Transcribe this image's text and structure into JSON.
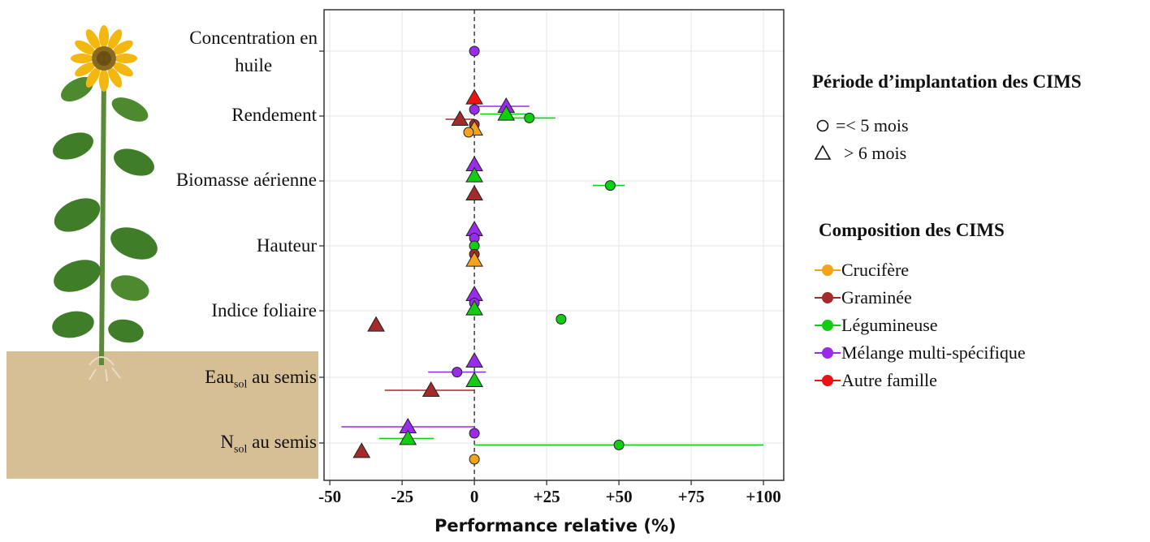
{
  "chart_data": {
    "type": "scatter",
    "xlabel": "Performance relative (%)",
    "xlim": [
      -52,
      107
    ],
    "xticks": [
      -50,
      -25,
      0,
      25,
      50,
      75,
      100
    ],
    "xtick_labels": [
      "-50",
      "-25",
      "0",
      "+25",
      "+50",
      "+75",
      "+100"
    ],
    "categories": [
      "Concentration en huile",
      "Rendement",
      "Biomasse aérienne",
      "Hauteur",
      "Indice foliaire",
      "Eau sol au semis",
      "N sol au semis"
    ],
    "grid": true,
    "legend_shape": {
      "title": "Période d’implantation des CIMS",
      "items": [
        {
          "shape": "circle",
          "label": "=< 5 mois"
        },
        {
          "shape": "triangle",
          "label": "> 6 mois"
        }
      ]
    },
    "legend_color": {
      "title": "Composition des CIMS",
      "items": [
        {
          "label": "Crucifère",
          "color": "#f5a31a"
        },
        {
          "label": "Graminée",
          "color": "#a52a2a"
        },
        {
          "label": "Légumineuse",
          "color": "#11cc11"
        },
        {
          "label": "Mélange multi-spécifique",
          "color": "#9b2bea"
        },
        {
          "label": "Autre famille",
          "color": "#ee1111"
        }
      ]
    },
    "points": [
      {
        "category": "Concentration en huile",
        "group": "Mélange multi-spécifique",
        "shape": "circle",
        "x": 0,
        "offset": 0
      },
      {
        "category": "Rendement",
        "group": "Autre famille",
        "shape": "triangle",
        "x": 0,
        "offset": -0.28
      },
      {
        "category": "Rendement",
        "group": "Mélange multi-spécifique",
        "shape": "triangle",
        "x": 11,
        "lo": 0,
        "hi": 19,
        "offset": -0.15
      },
      {
        "category": "Rendement",
        "group": "Mélange multi-spécifique",
        "shape": "circle",
        "x": 0,
        "offset": -0.1
      },
      {
        "category": "Rendement",
        "group": "Légumineuse",
        "shape": "triangle",
        "x": 11,
        "lo": 2,
        "hi": 19,
        "offset": -0.03
      },
      {
        "category": "Rendement",
        "group": "Légumineuse",
        "shape": "circle",
        "x": 19,
        "lo": 12,
        "hi": 28,
        "offset": 0.03
      },
      {
        "category": "Rendement",
        "group": "Graminée",
        "shape": "triangle",
        "x": -5,
        "lo": -10,
        "hi": 0,
        "offset": 0.05
      },
      {
        "category": "Rendement",
        "group": "Graminée",
        "shape": "circle",
        "x": 0,
        "offset": 0.13
      },
      {
        "category": "Rendement",
        "group": "Crucifère",
        "shape": "triangle",
        "x": 0,
        "offset": 0.2
      },
      {
        "category": "Rendement",
        "group": "Crucifère",
        "shape": "circle",
        "x": -2,
        "offset": 0.25
      },
      {
        "category": "Biomasse aérienne",
        "group": "Mélange multi-spécifique",
        "shape": "triangle",
        "x": 0,
        "offset": -0.25
      },
      {
        "category": "Biomasse aérienne",
        "group": "Légumineuse",
        "shape": "triangle",
        "x": 0,
        "offset": -0.08
      },
      {
        "category": "Biomasse aérienne",
        "group": "Légumineuse",
        "shape": "circle",
        "x": 47,
        "lo": 41,
        "hi": 52,
        "offset": 0.07
      },
      {
        "category": "Biomasse aérienne",
        "group": "Graminée",
        "shape": "triangle",
        "x": 0,
        "offset": 0.2
      },
      {
        "category": "Hauteur",
        "group": "Mélange multi-spécifique",
        "shape": "triangle",
        "x": 0,
        "offset": -0.25
      },
      {
        "category": "Hauteur",
        "group": "Mélange multi-spécifique",
        "shape": "circle",
        "x": 0,
        "offset": -0.12
      },
      {
        "category": "Hauteur",
        "group": "Légumineuse",
        "shape": "circle",
        "x": 0,
        "offset": 0
      },
      {
        "category": "Hauteur",
        "group": "Graminée",
        "shape": "circle",
        "x": 0,
        "offset": 0.13
      },
      {
        "category": "Hauteur",
        "group": "Crucifère",
        "shape": "triangle",
        "x": 0,
        "offset": 0.22
      },
      {
        "category": "Indice foliaire",
        "group": "Mélange multi-spécifique",
        "shape": "triangle",
        "x": 0,
        "offset": -0.25
      },
      {
        "category": "Indice foliaire",
        "group": "Mélange multi-spécifique",
        "shape": "circle",
        "x": 0,
        "offset": -0.12
      },
      {
        "category": "Indice foliaire",
        "group": "Légumineuse",
        "shape": "triangle",
        "x": 0,
        "offset": -0.03
      },
      {
        "category": "Indice foliaire",
        "group": "Légumineuse",
        "shape": "circle",
        "x": 30,
        "offset": 0.13
      },
      {
        "category": "Indice foliaire",
        "group": "Graminée",
        "shape": "triangle",
        "x": -34,
        "offset": 0.22
      },
      {
        "category": "Eau sol au semis",
        "group": "Mélange multi-spécifique",
        "shape": "triangle",
        "x": 0,
        "offset": -0.25
      },
      {
        "category": "Eau sol au semis",
        "group": "Mélange multi-spécifique",
        "shape": "circle",
        "x": -6,
        "lo": -16,
        "hi": 4,
        "offset": -0.08
      },
      {
        "category": "Eau sol au semis",
        "group": "Légumineuse",
        "shape": "triangle",
        "x": 0,
        "offset": 0.05
      },
      {
        "category": "Eau sol au semis",
        "group": "Graminée",
        "shape": "triangle",
        "x": -15,
        "lo": -31,
        "hi": 0,
        "offset": 0.2
      },
      {
        "category": "N sol au semis",
        "group": "Mélange multi-spécifique",
        "shape": "triangle",
        "x": -23,
        "lo": -46,
        "hi": 0,
        "offset": -0.25
      },
      {
        "category": "N sol au semis",
        "group": "Mélange multi-spécifique",
        "shape": "circle",
        "x": 0,
        "offset": -0.15
      },
      {
        "category": "N sol au semis",
        "group": "Légumineuse",
        "shape": "triangle",
        "x": -23,
        "lo": -33,
        "hi": -14,
        "offset": -0.07
      },
      {
        "category": "N sol au semis",
        "group": "Légumineuse",
        "shape": "circle",
        "x": 50,
        "lo": 0,
        "hi": 100,
        "offset": 0.03
      },
      {
        "category": "N sol au semis",
        "group": "Graminée",
        "shape": "triangle",
        "x": -39,
        "offset": 0.13
      },
      {
        "category": "N sol au semis",
        "group": "Crucifère",
        "shape": "circle",
        "x": 0,
        "offset": 0.25
      }
    ]
  },
  "labels": {
    "cat0_line1": "Concentration en",
    "cat0_line2": "huile",
    "cat1": "Rendement",
    "cat2": "Biomasse aérienne",
    "cat3": "Hauteur",
    "cat4": "Indice foliaire",
    "cat5_main": "Eau",
    "cat5_sub": "sol",
    "cat5_rest": " au semis",
    "cat6_main": "N",
    "cat6_sub": "sol",
    "cat6_rest": " au semis"
  }
}
